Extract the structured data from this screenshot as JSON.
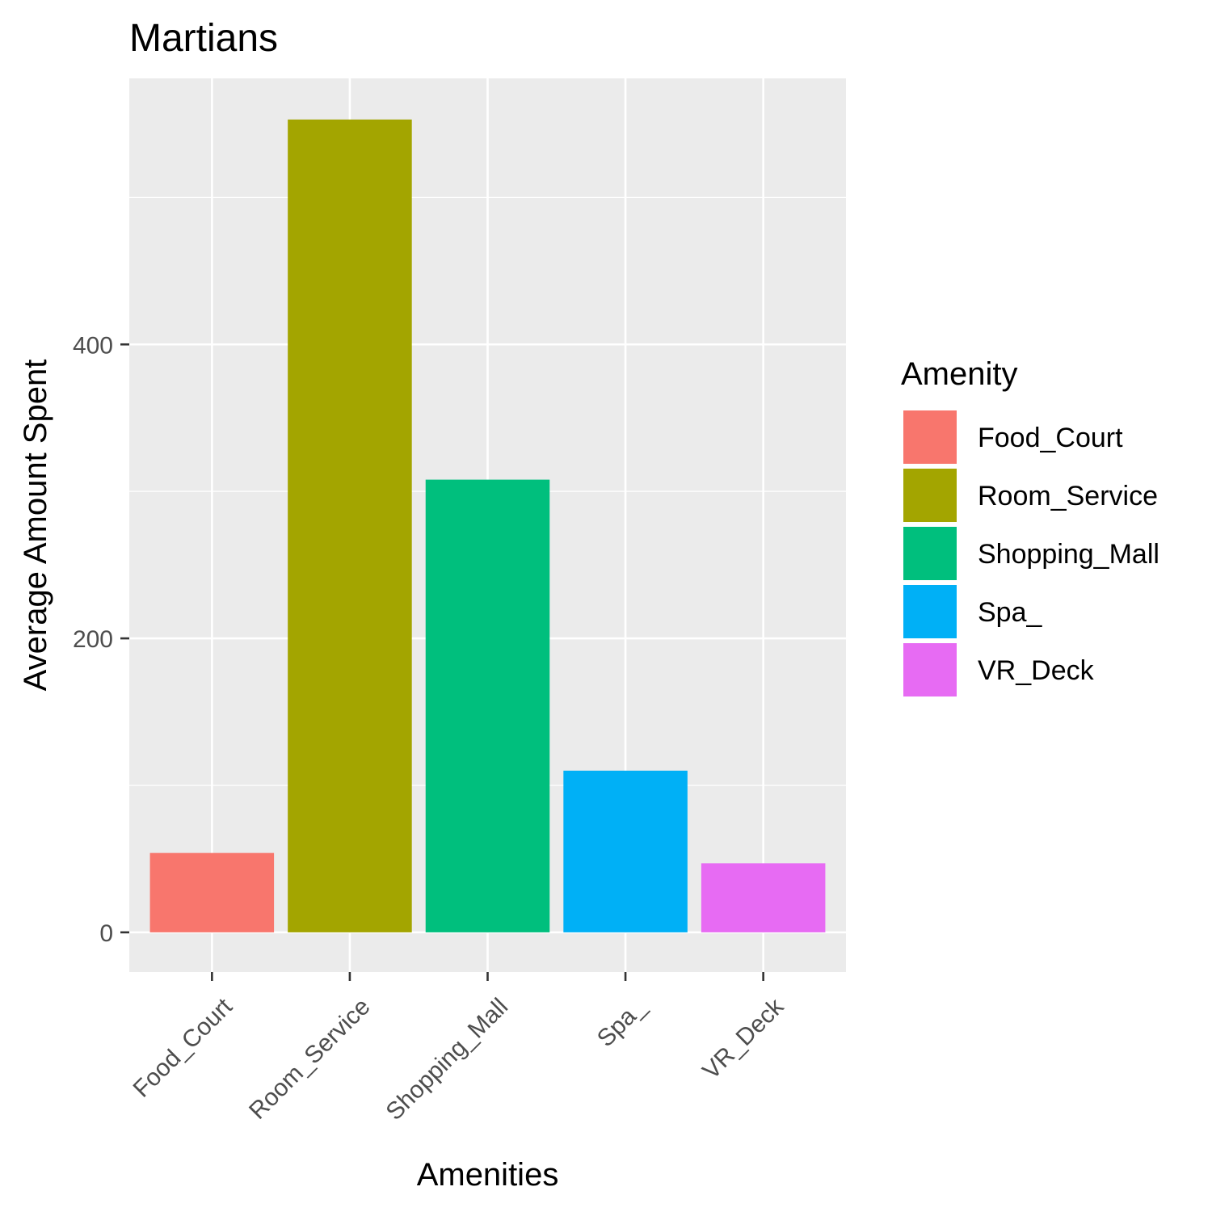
{
  "chart_data": {
    "type": "bar",
    "title": "Martians",
    "xlabel": "Amenities",
    "ylabel": "Average Amount Spent",
    "categories": [
      "Food_Court",
      "Room_Service",
      "Shopping_Mall",
      "Spa_",
      "VR_Deck"
    ],
    "values": [
      54,
      553,
      308,
      110,
      47
    ],
    "ylim": [
      -27,
      581
    ],
    "yticks": [
      0,
      200,
      400
    ],
    "ytick_labels": [
      "0",
      "200",
      "400"
    ],
    "grid": true,
    "x_tick_rotation_deg": 45,
    "legend": {
      "title": "Amenity",
      "position": "right",
      "items": [
        "Food_Court",
        "Room_Service",
        "Shopping_Mall",
        "Spa_",
        "VR_Deck"
      ]
    },
    "colors": [
      "#F8766D",
      "#A3A500",
      "#00BF7D",
      "#00B0F6",
      "#E76BF3"
    ],
    "panel_background": "#EBEBEB",
    "grid_color": "#FFFFFF"
  }
}
